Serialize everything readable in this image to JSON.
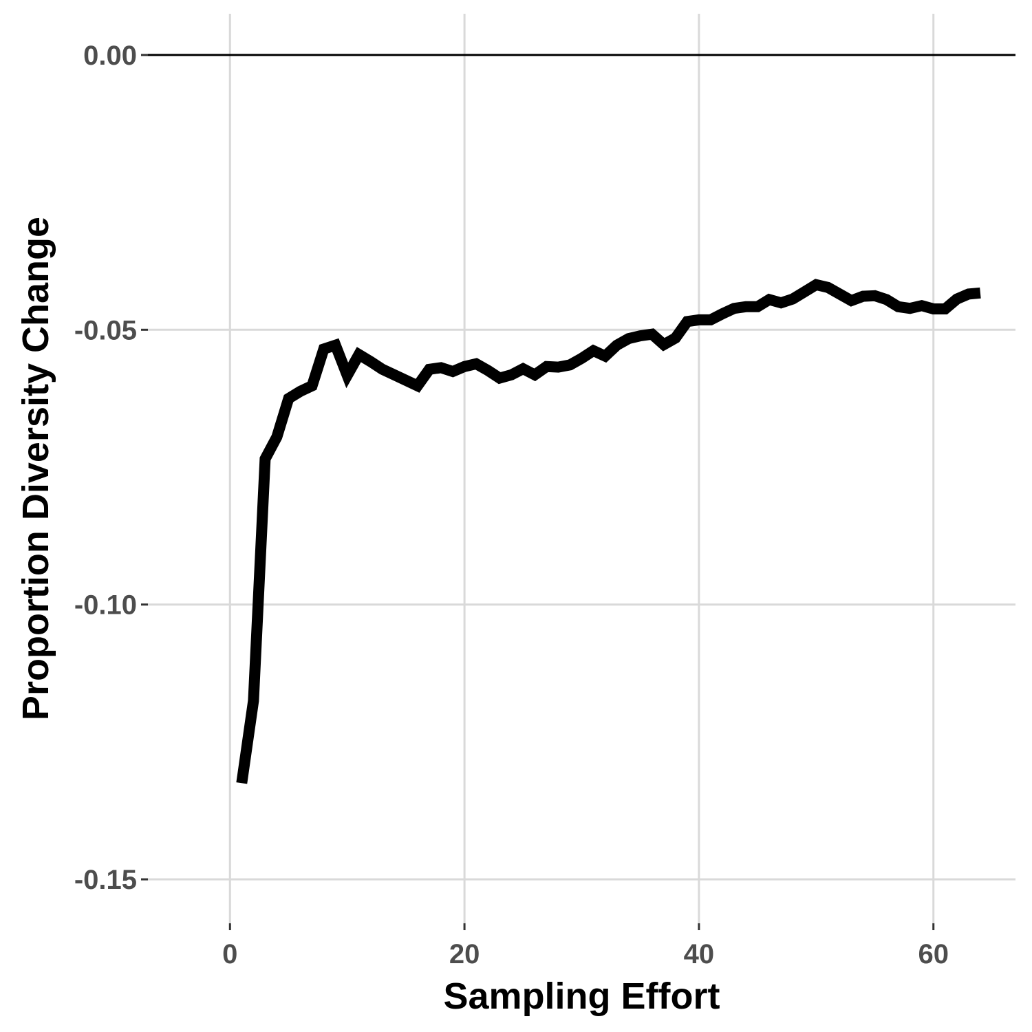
{
  "chart_data": {
    "type": "line",
    "title": "",
    "xlabel": "Sampling Effort",
    "ylabel": "Proportion Diversity Change",
    "xlim": [
      -7,
      67
    ],
    "ylim": [
      -0.158,
      0.0075
    ],
    "x_ticks": [
      0,
      20,
      40,
      60
    ],
    "x_tick_labels": [
      "0",
      "20",
      "40",
      "60"
    ],
    "y_ticks": [
      0.0,
      -0.05,
      -0.1,
      -0.15
    ],
    "y_tick_labels": [
      "0.00",
      "-0.05",
      "-0.10",
      "-0.15"
    ],
    "grid": true,
    "reference_line": {
      "y": 0,
      "color": "#000000"
    },
    "series": [
      {
        "color": "#000000",
        "x": [
          1,
          2,
          3,
          4,
          5,
          6,
          7,
          8,
          9,
          10,
          11,
          12,
          13,
          14,
          15,
          16,
          17,
          18,
          19,
          20,
          21,
          22,
          23,
          24,
          25,
          26,
          27,
          28,
          29,
          30,
          31,
          32,
          33,
          34,
          35,
          36,
          37,
          38,
          39,
          40,
          41,
          42,
          43,
          44,
          45,
          46,
          47,
          48,
          49,
          50,
          51,
          52,
          53,
          54,
          55,
          56,
          57,
          58,
          59,
          60,
          61,
          62,
          63,
          64
        ],
        "y": [
          -0.1325,
          -0.1175,
          -0.0735,
          -0.0695,
          -0.0625,
          -0.0612,
          -0.0602,
          -0.0535,
          -0.0528,
          -0.0583,
          -0.0545,
          -0.0558,
          -0.0572,
          -0.0582,
          -0.0592,
          -0.0602,
          -0.0572,
          -0.0569,
          -0.0576,
          -0.0567,
          -0.0562,
          -0.0574,
          -0.0588,
          -0.0582,
          -0.0571,
          -0.0582,
          -0.0567,
          -0.0568,
          -0.0564,
          -0.0552,
          -0.0538,
          -0.0548,
          -0.0528,
          -0.0516,
          -0.0511,
          -0.0508,
          -0.0527,
          -0.0515,
          -0.0485,
          -0.0482,
          -0.0482,
          -0.0471,
          -0.0461,
          -0.0458,
          -0.0458,
          -0.0445,
          -0.0451,
          -0.0444,
          -0.0431,
          -0.0418,
          -0.0423,
          -0.0435,
          -0.0447,
          -0.0439,
          -0.0438,
          -0.0445,
          -0.0458,
          -0.0461,
          -0.0456,
          -0.0462,
          -0.0462,
          -0.0444,
          -0.0435,
          -0.0433
        ]
      }
    ]
  }
}
